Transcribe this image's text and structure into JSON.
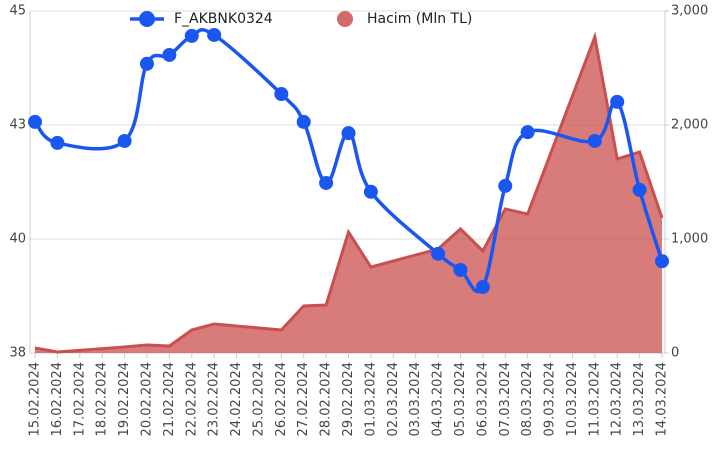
{
  "chart_data": {
    "type": "line",
    "categories": [
      "15.02.2024",
      "16.02.2024",
      "17.02.2024",
      "18.02.2024",
      "19.02.2024",
      "20.02.2024",
      "21.02.2024",
      "22.02.2024",
      "23.02.2024",
      "24.02.2024",
      "25.02.2024",
      "26.02.2024",
      "27.02.2024",
      "28.02.2024",
      "29.02.2024",
      "01.03.2024",
      "02.03.2024",
      "03.03.2024",
      "04.03.2024",
      "05.03.2024",
      "06.03.2024",
      "07.03.2024",
      "08.03.2024",
      "09.03.2024",
      "10.03.2024",
      "11.03.2024",
      "12.03.2024",
      "13.03.2024",
      "14.03.2024"
    ],
    "series": [
      {
        "name": "F_AKBNK0324",
        "type": "line",
        "color": "#1a56f0",
        "x": [
          "15.02.2024",
          "16.02.2024",
          "19.02.2024",
          "20.02.2024",
          "21.02.2024",
          "22.02.2024",
          "23.02.2024",
          "26.02.2024",
          "27.02.2024",
          "28.02.2024",
          "29.02.2024",
          "01.03.2024",
          "04.03.2024",
          "05.03.2024",
          "06.03.2024",
          "07.03.2024",
          "08.03.2024",
          "11.03.2024",
          "12.03.2024",
          "13.03.2024",
          "14.03.2024"
        ],
        "values": [
          42.73,
          42.3,
          42.34,
          43.92,
          44.1,
          44.49,
          44.51,
          43.3,
          42.73,
          41.48,
          42.5,
          41.3,
          40.03,
          39.7,
          39.35,
          41.42,
          42.52,
          42.34,
          43.14,
          41.34,
          39.88
        ]
      },
      {
        "name": "Hacim (Mln TL)",
        "type": "area",
        "color": "#c9504f",
        "axis": "y2",
        "x": [
          "15.02.2024",
          "16.02.2024",
          "19.02.2024",
          "20.02.2024",
          "21.02.2024",
          "22.02.2024",
          "23.02.2024",
          "26.02.2024",
          "27.02.2024",
          "28.02.2024",
          "29.02.2024",
          "01.03.2024",
          "04.03.2024",
          "05.03.2024",
          "06.03.2024",
          "07.03.2024",
          "08.03.2024",
          "11.03.2024",
          "12.03.2024",
          "13.03.2024",
          "14.03.2024"
        ],
        "values": [
          44,
          9,
          53,
          70,
          61,
          202,
          254,
          202,
          412,
          421,
          1061,
          754,
          912,
          1088,
          895,
          1263,
          1219,
          2772,
          1702,
          1763,
          1184
        ]
      }
    ],
    "ylim": [
      38,
      45
    ],
    "yticks": [
      38,
      {
        "value": 40.333,
        "label": "40"
      },
      {
        "value": 42.667,
        "label": "43"
      },
      45
    ],
    "y2lim": [
      0,
      3000
    ],
    "y2ticks": [
      0,
      {
        "value": 1000,
        "label": "1,000"
      },
      {
        "value": 2000,
        "label": "2,000"
      },
      {
        "value": 3000,
        "label": "3,000"
      }
    ],
    "grid": true,
    "legend": "top"
  }
}
